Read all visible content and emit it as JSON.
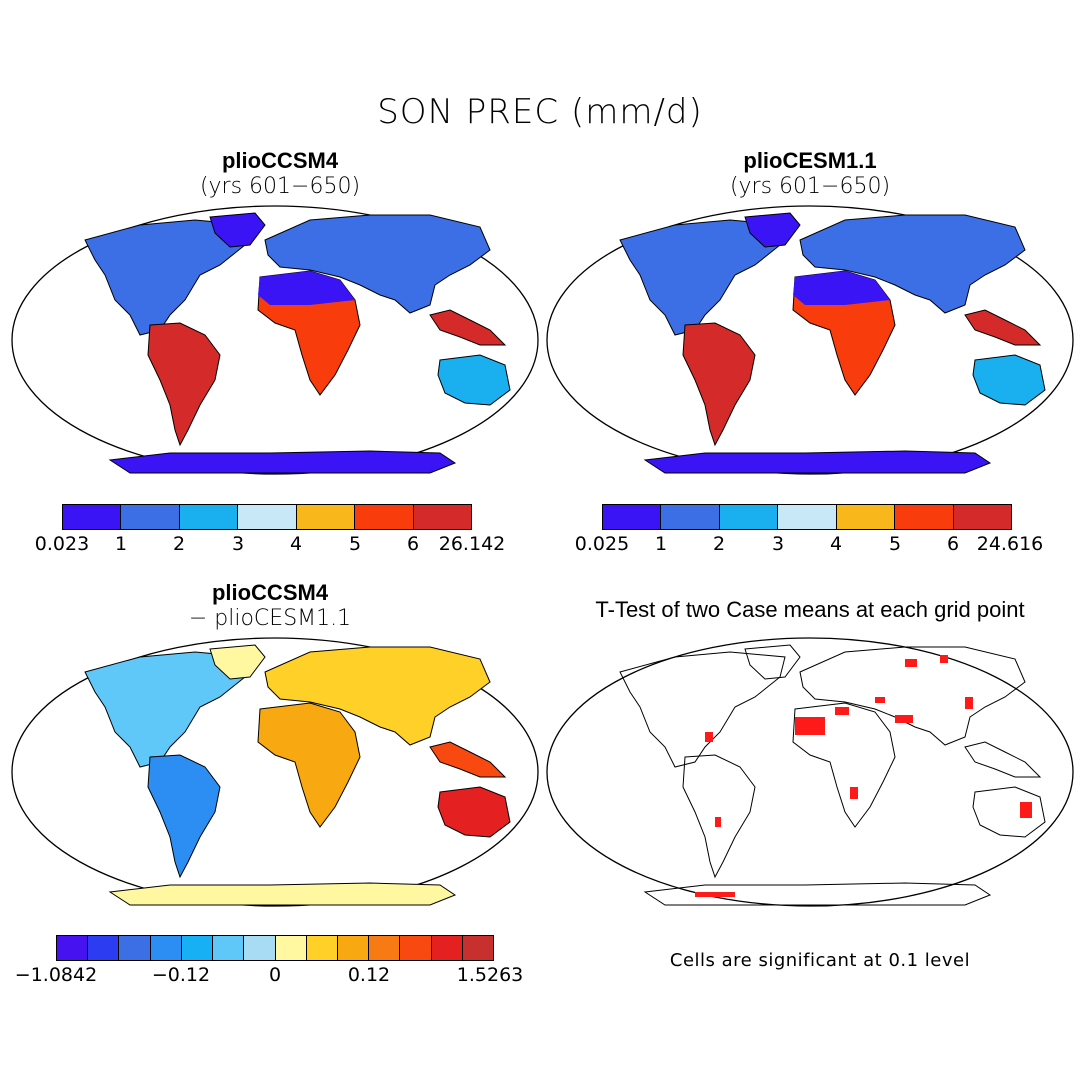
{
  "figure_title": "SON PREC (mm/d)",
  "panels": [
    {
      "title": "plioCCSM4",
      "subtitle": "(yrs 601−650)"
    },
    {
      "title": "plioCESM1.1",
      "subtitle": "(yrs 601−650)"
    },
    {
      "title": "plioCCSM4",
      "subtitle": "− plioCESM1.1"
    },
    {
      "title": "T-Test of two Case means at each grid point",
      "subtitle": ""
    }
  ],
  "colorbars": {
    "cb1": {
      "labels": [
        "0.023",
        "1",
        "2",
        "3",
        "4",
        "5",
        "6",
        "26.142"
      ],
      "colors": [
        "#3a14f5",
        "#3c6ee6",
        "#1ab0f0",
        "#c8e8f8",
        "#f8b81c",
        "#f83c0c",
        "#d42a2a"
      ]
    },
    "cb2": {
      "labels": [
        "0.025",
        "1",
        "2",
        "3",
        "4",
        "5",
        "6",
        "24.616"
      ],
      "colors": [
        "#3a14f5",
        "#3c6ee6",
        "#1ab0f0",
        "#c8e8f8",
        "#f8b81c",
        "#f83c0c",
        "#d42a2a"
      ]
    },
    "cb3": {
      "labels": [
        "−1.0842",
        "−0.12",
        "0",
        "0.12",
        "1.5263"
      ],
      "colors": [
        "#4612f0",
        "#2c3cf0",
        "#3c6ee6",
        "#2c8ef2",
        "#18b0f4",
        "#60c8f8",
        "#a8dcf4",
        "#fff8a0",
        "#ffd028",
        "#f8a810",
        "#f87a14",
        "#f84a10",
        "#e42020",
        "#c83030"
      ]
    }
  },
  "significance_note": "Cells are significant at 0.1 level",
  "colors": {
    "significant": "#ff1a1a",
    "coastline": "#000000"
  }
}
